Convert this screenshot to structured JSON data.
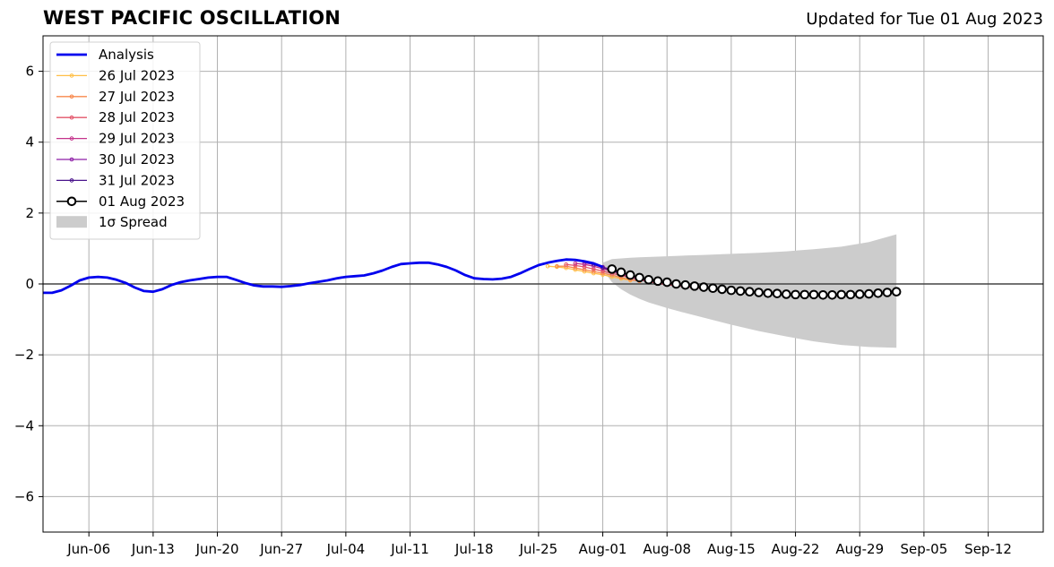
{
  "header": {
    "title": "WEST PACIFIC OSCILLATION",
    "updated": "Updated for Tue 01 Aug 2023"
  },
  "chart_data": {
    "type": "line",
    "title": "WEST PACIFIC OSCILLATION",
    "subtitle": "Updated for Tue 01 Aug 2023",
    "xlabel": "",
    "ylabel": "",
    "x_range": [
      "2023-06-01",
      "2023-09-18"
    ],
    "ylim": [
      -7,
      7
    ],
    "grid": true,
    "legend_position": "top-left",
    "x_ticks": [
      {
        "date": "2023-06-06",
        "label": "Jun-06"
      },
      {
        "date": "2023-06-13",
        "label": "Jun-13"
      },
      {
        "date": "2023-06-20",
        "label": "Jun-20"
      },
      {
        "date": "2023-06-27",
        "label": "Jun-27"
      },
      {
        "date": "2023-07-04",
        "label": "Jul-04"
      },
      {
        "date": "2023-07-11",
        "label": "Jul-11"
      },
      {
        "date": "2023-07-18",
        "label": "Jul-18"
      },
      {
        "date": "2023-07-25",
        "label": "Jul-25"
      },
      {
        "date": "2023-08-01",
        "label": "Aug-01"
      },
      {
        "date": "2023-08-08",
        "label": "Aug-08"
      },
      {
        "date": "2023-08-15",
        "label": "Aug-15"
      },
      {
        "date": "2023-08-22",
        "label": "Aug-22"
      },
      {
        "date": "2023-08-29",
        "label": "Aug-29"
      },
      {
        "date": "2023-09-05",
        "label": "Sep-05"
      },
      {
        "date": "2023-09-12",
        "label": "Sep-12"
      }
    ],
    "y_ticks": [
      {
        "value": -6,
        "label": "−6"
      },
      {
        "value": -4,
        "label": "−4"
      },
      {
        "value": -2,
        "label": "−2"
      },
      {
        "value": 0,
        "label": "0"
      },
      {
        "value": 2,
        "label": "2"
      },
      {
        "value": 4,
        "label": "4"
      },
      {
        "value": 6,
        "label": "6"
      }
    ],
    "analysis": {
      "name": "Analysis",
      "color": "#0000ee",
      "x": [
        "2023-06-01",
        "2023-06-02",
        "2023-06-03",
        "2023-06-04",
        "2023-06-05",
        "2023-06-06",
        "2023-06-07",
        "2023-06-08",
        "2023-06-09",
        "2023-06-10",
        "2023-06-11",
        "2023-06-12",
        "2023-06-13",
        "2023-06-14",
        "2023-06-15",
        "2023-06-16",
        "2023-06-17",
        "2023-06-18",
        "2023-06-19",
        "2023-06-20",
        "2023-06-21",
        "2023-06-22",
        "2023-06-23",
        "2023-06-24",
        "2023-06-25",
        "2023-06-26",
        "2023-06-27",
        "2023-06-28",
        "2023-06-29",
        "2023-06-30",
        "2023-07-01",
        "2023-07-02",
        "2023-07-03",
        "2023-07-04",
        "2023-07-05",
        "2023-07-06",
        "2023-07-07",
        "2023-07-08",
        "2023-07-09",
        "2023-07-10",
        "2023-07-11",
        "2023-07-12",
        "2023-07-13",
        "2023-07-14",
        "2023-07-15",
        "2023-07-16",
        "2023-07-17",
        "2023-07-18",
        "2023-07-19",
        "2023-07-20",
        "2023-07-21",
        "2023-07-22",
        "2023-07-23",
        "2023-07-24",
        "2023-07-25",
        "2023-07-26",
        "2023-07-27",
        "2023-07-28",
        "2023-07-29",
        "2023-07-30",
        "2023-07-31",
        "2023-08-01"
      ],
      "values": [
        -0.25,
        -0.25,
        -0.18,
        -0.05,
        0.1,
        0.18,
        0.2,
        0.18,
        0.12,
        0.03,
        -0.1,
        -0.2,
        -0.22,
        -0.15,
        -0.03,
        0.05,
        0.1,
        0.14,
        0.18,
        0.2,
        0.2,
        0.12,
        0.03,
        -0.04,
        -0.07,
        -0.07,
        -0.08,
        -0.06,
        -0.03,
        0.02,
        0.06,
        0.1,
        0.16,
        0.2,
        0.22,
        0.24,
        0.3,
        0.38,
        0.48,
        0.56,
        0.58,
        0.6,
        0.6,
        0.55,
        0.48,
        0.38,
        0.25,
        0.16,
        0.14,
        0.13,
        0.15,
        0.2,
        0.3,
        0.42,
        0.53,
        0.6,
        0.65,
        0.69,
        0.68,
        0.64,
        0.58,
        0.48
      ]
    },
    "forecasts": [
      {
        "name": "26 Jul 2023",
        "color": "#ffbf47",
        "x": [
          "2023-07-26",
          "2023-07-27",
          "2023-07-28",
          "2023-07-29",
          "2023-07-30",
          "2023-07-31",
          "2023-08-01",
          "2023-08-02",
          "2023-08-03",
          "2023-08-04"
        ],
        "values": [
          0.5,
          0.48,
          0.45,
          0.4,
          0.35,
          0.3,
          0.26,
          0.2,
          0.15,
          0.1
        ]
      },
      {
        "name": "27 Jul 2023",
        "color": "#f8884c",
        "x": [
          "2023-07-27",
          "2023-07-28",
          "2023-07-29",
          "2023-07-30",
          "2023-07-31",
          "2023-08-01",
          "2023-08-02",
          "2023-08-03",
          "2023-08-04",
          "2023-08-05"
        ],
        "values": [
          0.5,
          0.5,
          0.45,
          0.4,
          0.35,
          0.3,
          0.25,
          0.18,
          0.12,
          0.08
        ]
      },
      {
        "name": "28 Jul 2023",
        "color": "#e3546a",
        "x": [
          "2023-07-28",
          "2023-07-29",
          "2023-07-30",
          "2023-07-31",
          "2023-08-01",
          "2023-08-02",
          "2023-08-03",
          "2023-08-04",
          "2023-08-05",
          "2023-08-06",
          "2023-08-07",
          "2023-08-08",
          "2023-08-09",
          "2023-08-10",
          "2023-08-11",
          "2023-08-12"
        ],
        "values": [
          0.55,
          0.52,
          0.48,
          0.42,
          0.36,
          0.3,
          0.24,
          0.18,
          0.12,
          0.06,
          0.02,
          -0.02,
          -0.05,
          -0.08,
          -0.1,
          -0.13
        ]
      },
      {
        "name": "29 Jul 2023",
        "color": "#c4338b",
        "x": [
          "2023-07-29",
          "2023-07-30",
          "2023-07-31",
          "2023-08-01",
          "2023-08-02",
          "2023-08-03",
          "2023-08-04",
          "2023-08-05",
          "2023-08-06"
        ],
        "values": [
          0.58,
          0.55,
          0.5,
          0.43,
          0.36,
          0.28,
          0.2,
          0.14,
          0.08
        ]
      },
      {
        "name": "30 Jul 2023",
        "color": "#8e1ea7",
        "x": [
          "2023-07-30",
          "2023-07-31",
          "2023-08-01",
          "2023-08-02",
          "2023-08-03",
          "2023-08-04"
        ],
        "values": [
          0.6,
          0.55,
          0.48,
          0.4,
          0.32,
          0.24
        ]
      },
      {
        "name": "31 Jul 2023",
        "color": "#4a148c",
        "x": [
          "2023-07-31",
          "2023-08-01",
          "2023-08-02",
          "2023-08-03"
        ],
        "values": [
          0.55,
          0.46,
          0.38,
          0.3
        ]
      }
    ],
    "current_forecast": {
      "name": "01 Aug 2023",
      "color": "#000000",
      "x": [
        "2023-08-02",
        "2023-08-03",
        "2023-08-04",
        "2023-08-05",
        "2023-08-06",
        "2023-08-07",
        "2023-08-08",
        "2023-08-09",
        "2023-08-10",
        "2023-08-11",
        "2023-08-12",
        "2023-08-13",
        "2023-08-14",
        "2023-08-15",
        "2023-08-16",
        "2023-08-17",
        "2023-08-18",
        "2023-08-19",
        "2023-08-20",
        "2023-08-21",
        "2023-08-22",
        "2023-08-23",
        "2023-08-24",
        "2023-08-25",
        "2023-08-26",
        "2023-08-27",
        "2023-08-28",
        "2023-08-29",
        "2023-08-30",
        "2023-08-31",
        "2023-09-01",
        "2023-09-02"
      ],
      "values": [
        0.42,
        0.33,
        0.25,
        0.18,
        0.12,
        0.08,
        0.05,
        0.0,
        -0.03,
        -0.06,
        -0.09,
        -0.12,
        -0.15,
        -0.18,
        -0.2,
        -0.22,
        -0.24,
        -0.26,
        -0.27,
        -0.29,
        -0.3,
        -0.3,
        -0.3,
        -0.31,
        -0.31,
        -0.3,
        -0.3,
        -0.29,
        -0.28,
        -0.26,
        -0.24,
        -0.22
      ]
    },
    "spread": {
      "name": "1σ Spread",
      "color": "#cccccc",
      "x": [
        "2023-08-01",
        "2023-08-02",
        "2023-08-03",
        "2023-08-04",
        "2023-08-05",
        "2023-08-06",
        "2023-08-08",
        "2023-08-10",
        "2023-08-12",
        "2023-08-15",
        "2023-08-18",
        "2023-08-21",
        "2023-08-24",
        "2023-08-27",
        "2023-08-30",
        "2023-09-02"
      ],
      "upper": [
        0.6,
        0.7,
        0.72,
        0.74,
        0.75,
        0.76,
        0.78,
        0.8,
        0.82,
        0.85,
        0.88,
        0.92,
        0.98,
        1.05,
        1.18,
        1.4
      ],
      "lower": [
        0.4,
        0.05,
        -0.15,
        -0.3,
        -0.42,
        -0.52,
        -0.68,
        -0.82,
        -0.95,
        -1.15,
        -1.33,
        -1.48,
        -1.62,
        -1.72,
        -1.78,
        -1.8
      ]
    }
  }
}
